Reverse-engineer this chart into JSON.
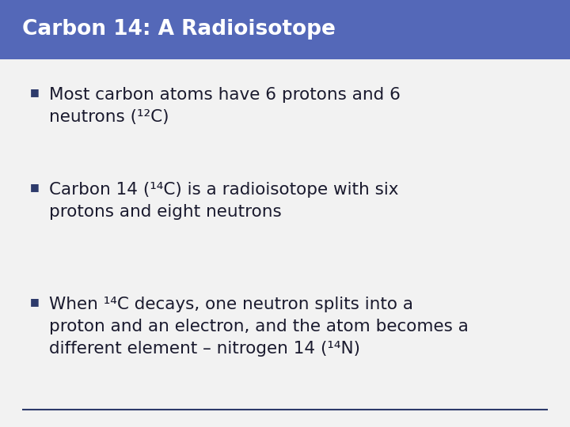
{
  "title": "Carbon 14: A Radioisotope",
  "title_bg_color": "#5468b8",
  "title_text_color": "#ffffff",
  "body_bg_color": "#f2f2f2",
  "bullet_color": "#2d3a6b",
  "text_color": "#1a1a2e",
  "bottom_line_color": "#2d3a6b",
  "bullets": [
    {
      "lines": [
        "Most carbon atoms have 6 protons and 6",
        "neutrons (¹²C)"
      ]
    },
    {
      "lines": [
        "Carbon 14 (¹⁴C) is a radioisotope with six",
        "protons and eight neutrons"
      ]
    },
    {
      "lines": [
        "When ¹⁴C decays, one neutron splits into a",
        "proton and an electron, and the atom becomes a",
        "different element – nitrogen 14 (¹⁴N)"
      ]
    }
  ],
  "title_fontsize": 19,
  "body_fontsize": 15.5,
  "figsize": [
    7.2,
    5.4
  ],
  "dpi": 100
}
